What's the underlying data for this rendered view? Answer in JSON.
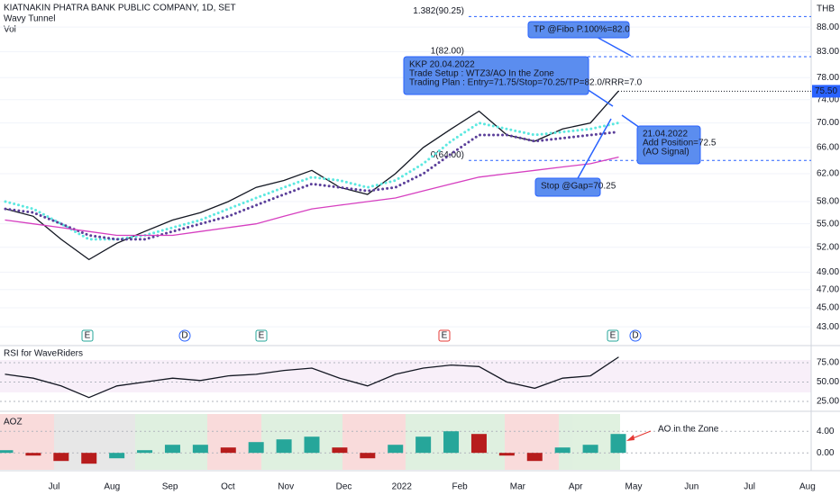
{
  "header": {
    "symbol": "KIATNAKIN PHATRA BANK PUBLIC COMPANY, 1D, SET",
    "indicators": [
      "Wavy Tunnel",
      "Vol"
    ],
    "currency": "THB"
  },
  "time_axis": [
    "Jul",
    "Aug",
    "Sep",
    "Oct",
    "Nov",
    "Dec",
    "2022",
    "Feb",
    "Mar",
    "Apr",
    "May",
    "Jun",
    "Jul",
    "Aug"
  ],
  "events": [
    "E",
    "D",
    "E",
    "E",
    "E",
    "D"
  ],
  "annotations": {
    "tp": "TP @Fibo P.100%=82.0",
    "setup": [
      "KKP 20.04.2022",
      "Trade Setup : WTZ3/AO In the Zone",
      "Trading Plan : Entry=71.75/Stop=70.25/TP=82.0/RRR=7.0"
    ],
    "add": [
      "21.04.2022",
      "Add Position=72.5",
      "(AO Signal)"
    ],
    "stop": "Stop @Gap=70.25",
    "ao": "AO in the Zone"
  },
  "chart_data": [
    {
      "type": "line",
      "log_scale": true,
      "ylim": [
        41.2,
        93.9
      ],
      "yticks": [
        {
          "value": 88,
          "label": "88.00"
        },
        {
          "value": 83,
          "label": "83.00"
        },
        {
          "value": 78,
          "label": "78.00"
        },
        {
          "value": 74,
          "label": "74.00"
        },
        {
          "value": 70,
          "label": "70.00"
        },
        {
          "value": 66,
          "label": "66.00"
        },
        {
          "value": 62,
          "label": "62.00"
        },
        {
          "value": 58,
          "label": "58.00"
        },
        {
          "value": 55,
          "label": "55.00"
        },
        {
          "value": 52,
          "label": "52.00"
        },
        {
          "value": 49,
          "label": "49.00"
        },
        {
          "value": 47,
          "label": "47.00"
        },
        {
          "value": 45,
          "label": "45.00"
        },
        {
          "value": 43,
          "label": "43.00"
        }
      ],
      "last_price": {
        "value": 75.5,
        "label": "75.50"
      },
      "fib_levels": [
        {
          "value": 90.25,
          "label": "1.382(90.25)"
        },
        {
          "value": 82,
          "label": "1(82.00)"
        },
        {
          "value": 64,
          "label": "0(64.00)"
        }
      ],
      "series": [
        {
          "color": "#131722",
          "style": "solid",
          "values": [
            57,
            56,
            53,
            50.5,
            52.5,
            54,
            55.5,
            56.5,
            58,
            60,
            61,
            62.5,
            60,
            59,
            62,
            66,
            69,
            72,
            68,
            67,
            69,
            70,
            75.5
          ]
        },
        {
          "color": "#5ce8e0",
          "style": "dots",
          "values": [
            58,
            57,
            55,
            53,
            53,
            53.5,
            54.5,
            55.5,
            57,
            58.5,
            60,
            61.5,
            61,
            60,
            61,
            63.5,
            67,
            70,
            69,
            68,
            68.5,
            69,
            70
          ]
        },
        {
          "color": "#5b3f9a",
          "style": "dots",
          "values": [
            57,
            56.5,
            55,
            53.5,
            53,
            53,
            54,
            55,
            56,
            57.5,
            59,
            60.5,
            60,
            59.5,
            60,
            62,
            65,
            68,
            68,
            67,
            67.5,
            68,
            68.5
          ]
        },
        {
          "color": "#d63fc0",
          "style": "solid",
          "values": [
            55.5,
            55,
            54.5,
            54,
            53.5,
            53.5,
            53.5,
            54,
            54.5,
            55,
            56,
            57,
            57.5,
            58,
            58.5,
            59.5,
            60.5,
            61.5,
            62,
            62.5,
            63,
            63.5,
            64.5
          ]
        }
      ]
    },
    {
      "type": "line",
      "title": "RSI for WaveRiders",
      "ylim": [
        14.5,
        96
      ],
      "yticks": [
        {
          "value": 75,
          "label": "75.00"
        },
        {
          "value": 50,
          "label": "50.00"
        },
        {
          "value": 25,
          "label": "25.00"
        }
      ],
      "color": "#131722",
      "values": [
        60,
        55,
        45,
        30,
        45,
        50,
        55,
        52,
        58,
        60,
        65,
        68,
        55,
        45,
        60,
        68,
        72,
        70,
        50,
        42,
        55,
        58,
        82
      ]
    },
    {
      "type": "bar",
      "title": "AOZ",
      "ylim": [
        -2.8,
        7.2
      ],
      "yticks": [
        {
          "value": 4,
          "label": "4.00"
        },
        {
          "value": 0,
          "label": "0.00"
        }
      ],
      "up_color": "#26a69a",
      "down_color": "#b71c1c",
      "values": [
        0.5,
        -0.5,
        -1.5,
        -2,
        -1,
        0.5,
        1.5,
        1.5,
        1,
        2,
        2.5,
        3,
        1,
        -1,
        1.5,
        3,
        4,
        3.5,
        -0.5,
        -1.5,
        1,
        1.5,
        3.5
      ]
    }
  ]
}
